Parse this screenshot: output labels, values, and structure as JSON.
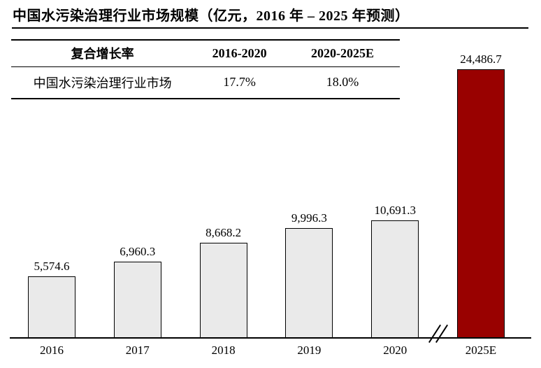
{
  "title": "中国水污染治理行业市场规模（亿元，2016 年 – 2025 年预测）",
  "table": {
    "headers": [
      "复合增长率",
      "2016-2020",
      "2020-2025E"
    ],
    "rows": [
      [
        "中国水污染治理行业市场",
        "17.7%",
        "18.0%"
      ]
    ]
  },
  "chart_data": {
    "type": "bar",
    "title": "中国水污染治理行业市场规模（亿元，2016 年 – 2025 年预测）",
    "categories": [
      "2016",
      "2017",
      "2018",
      "2019",
      "2020",
      "2025E"
    ],
    "values": [
      5574.6,
      6960.3,
      8668.2,
      9996.3,
      10691.3,
      24486.7
    ],
    "value_labels": [
      "5,574.6",
      "6,960.3",
      "8,668.2",
      "9,996.3",
      "10,691.3",
      "24,486.7"
    ],
    "xlabel": "",
    "ylabel": "",
    "ylim": [
      0,
      26000
    ],
    "grid": false,
    "legend": false,
    "value_label_position": "above-bar",
    "bar_fill": "#EAEAEA",
    "bar_border": "#000000",
    "highlight_category": "2025E",
    "highlight_fill": "#990100",
    "axis_break_between": [
      "2020",
      "2025E"
    ]
  }
}
